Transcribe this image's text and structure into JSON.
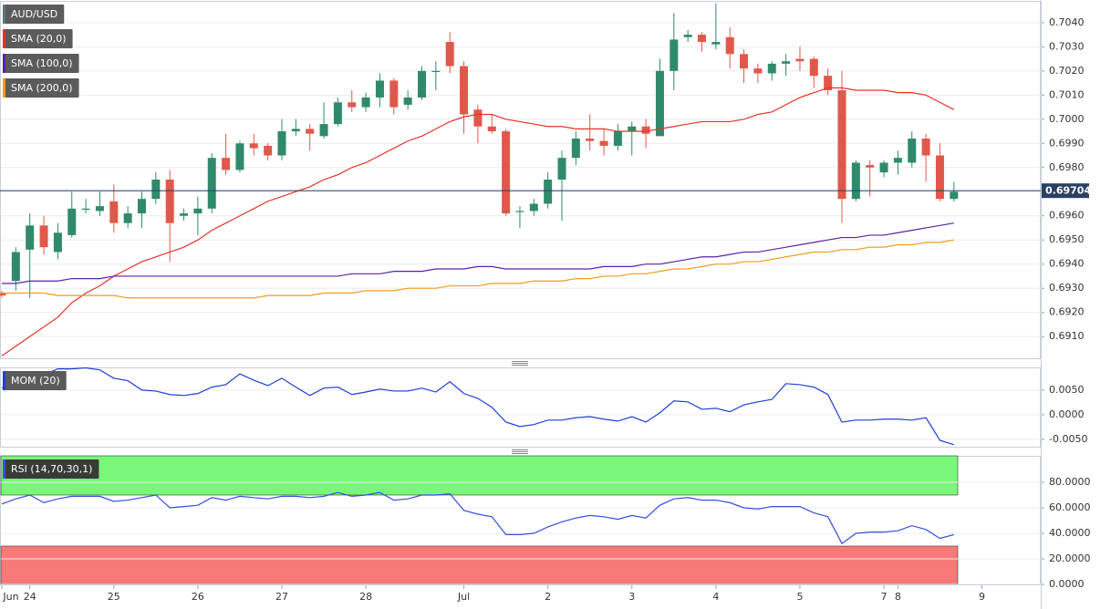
{
  "chart_data": [
    {
      "type": "candlestick",
      "name": "AUD/USD",
      "categories": [
        "Jun",
        null,
        "24",
        null,
        null,
        null,
        null,
        null,
        "25",
        null,
        null,
        null,
        null,
        null,
        "26",
        null,
        null,
        null,
        null,
        null,
        "27",
        null,
        null,
        null,
        null,
        null,
        "28",
        null,
        null,
        null,
        null,
        null,
        null,
        "Jul",
        null,
        null,
        null,
        null,
        null,
        "2",
        null,
        null,
        null,
        null,
        null,
        "3",
        null,
        null,
        null,
        null,
        null,
        "4",
        null,
        null,
        null,
        null,
        null,
        "5",
        null,
        null,
        null,
        null,
        null,
        "7",
        "8",
        null,
        null,
        null,
        null,
        null,
        "9"
      ],
      "open": [
        0.6928,
        0.6933,
        0.6946,
        0.6956,
        0.6945,
        0.6952,
        0.6963,
        0.6962,
        0.6966,
        0.6957,
        0.6961,
        0.6967,
        0.6975,
        0.696,
        0.6961,
        0.6963,
        0.6984,
        0.6979,
        0.699,
        0.6989,
        0.6985,
        0.6995,
        0.6996,
        0.6993,
        0.6998,
        0.7007,
        0.7005,
        0.7009,
        0.7016,
        0.7006,
        0.7009,
        0.702,
        0.7032,
        0.7022,
        0.7004,
        0.6997,
        0.6995,
        0.6962,
        0.6962,
        0.6965,
        0.6975,
        0.6984,
        0.6992,
        0.6991,
        0.6989,
        0.6995,
        0.6997,
        0.6993,
        0.702,
        0.7034,
        0.7035,
        0.7031,
        0.7034,
        0.7027,
        0.7021,
        0.7019,
        0.7023,
        0.7025,
        0.7025,
        0.7018,
        0.7012,
        0.6967,
        0.6981,
        0.6978,
        0.6982,
        0.6982,
        0.6992,
        0.6985,
        0.6967,
        null,
        null
      ],
      "high": [
        0.6929,
        0.6947,
        0.6961,
        0.696,
        0.6957,
        0.697,
        0.6967,
        0.697,
        0.6973,
        0.6964,
        0.697,
        0.6978,
        0.6979,
        0.6963,
        0.6968,
        0.6986,
        0.6994,
        0.6991,
        0.6994,
        0.699,
        0.7,
        0.7,
        0.6998,
        0.7007,
        0.7009,
        0.7012,
        0.7011,
        0.7019,
        0.7017,
        0.7012,
        0.7022,
        0.7024,
        0.7036,
        0.7024,
        0.7006,
        0.7002,
        0.6996,
        0.6964,
        0.6967,
        0.6978,
        0.6987,
        0.6995,
        0.7002,
        0.6996,
        0.6998,
        0.6999,
        0.7,
        0.7025,
        0.7044,
        0.7037,
        0.7036,
        0.7048,
        0.7038,
        0.7029,
        0.7023,
        0.7024,
        0.7027,
        0.703,
        0.7026,
        0.7021,
        0.702,
        0.6983,
        0.6983,
        0.6983,
        0.6987,
        0.6995,
        0.6994,
        0.699,
        0.6974,
        null,
        null
      ],
      "low": [
        0.6926,
        0.6929,
        0.6926,
        0.6944,
        0.6942,
        0.6951,
        0.6961,
        0.696,
        0.6953,
        0.6955,
        0.6955,
        0.6965,
        0.6941,
        0.6958,
        0.6952,
        0.6961,
        0.6977,
        0.6978,
        0.6985,
        0.6983,
        0.6983,
        0.6993,
        0.6987,
        0.6992,
        0.6997,
        0.7003,
        0.7003,
        0.7005,
        0.7002,
        0.7004,
        0.7008,
        0.7012,
        0.7019,
        0.6994,
        0.699,
        0.6994,
        0.696,
        0.6955,
        0.696,
        0.6963,
        0.6958,
        0.6981,
        0.6987,
        0.6985,
        0.6987,
        0.6985,
        0.6988,
        0.6993,
        0.7012,
        0.7032,
        0.7028,
        0.7029,
        0.7021,
        0.7015,
        0.7015,
        0.7016,
        0.7018,
        0.702,
        0.7013,
        0.701,
        0.6957,
        0.6966,
        0.6968,
        0.6976,
        0.6977,
        0.698,
        0.6974,
        0.6966,
        0.6966,
        null,
        null
      ],
      "close": [
        0.6927,
        0.6945,
        0.6956,
        0.6947,
        0.6953,
        0.6963,
        0.6963,
        0.6964,
        0.6957,
        0.6961,
        0.6967,
        0.6975,
        0.6957,
        0.6961,
        0.6963,
        0.6984,
        0.6979,
        0.699,
        0.6988,
        0.6985,
        0.6995,
        0.6996,
        0.6994,
        0.6998,
        0.7007,
        0.7005,
        0.7009,
        0.7016,
        0.7005,
        0.7009,
        0.702,
        0.702,
        0.7022,
        0.7002,
        0.6997,
        0.6995,
        0.6961,
        0.6962,
        0.6965,
        0.6975,
        0.6984,
        0.6992,
        0.6991,
        0.6989,
        0.6995,
        0.6997,
        0.6994,
        0.702,
        0.7033,
        0.7035,
        0.7032,
        0.7032,
        0.7027,
        0.7021,
        0.7019,
        0.7023,
        0.7024,
        0.7024,
        0.7018,
        0.7012,
        0.6967,
        0.6982,
        0.698,
        0.6982,
        0.6984,
        0.6992,
        0.6985,
        0.6967,
        0.697,
        null,
        null
      ],
      "up_color": "#2f8a6c",
      "down_color": "#e0584b",
      "series": [
        {
          "name": "SMA (20,0)",
          "color": "#e3342a",
          "values": [
            0.6902,
            0.6906,
            0.691,
            0.6914,
            0.6918,
            0.6924,
            0.6928,
            0.6931,
            0.6935,
            0.6938,
            0.6941,
            0.6943,
            0.6945,
            0.6947,
            0.695,
            0.6954,
            0.6957,
            0.696,
            0.6963,
            0.6966,
            0.6968,
            0.697,
            0.6972,
            0.6975,
            0.6977,
            0.698,
            0.6982,
            0.6985,
            0.6988,
            0.6991,
            0.6993,
            0.6996,
            0.6999,
            0.7001,
            0.7002,
            0.7002,
            0.7,
            0.6999,
            0.6998,
            0.6997,
            0.6997,
            0.6996,
            0.6996,
            0.6996,
            0.6995,
            0.6995,
            0.6995,
            0.6996,
            0.6997,
            0.6998,
            0.6999,
            0.6999,
            0.6999,
            0.7,
            0.7002,
            0.7003,
            0.7006,
            0.7009,
            0.7011,
            0.7013,
            0.7013,
            0.7012,
            0.7012,
            0.7012,
            0.7011,
            0.7011,
            0.701,
            0.7007,
            0.7004,
            null,
            null
          ]
        },
        {
          "name": "SMA (100,0)",
          "color": "#5a22a8",
          "values": [
            0.6932,
            0.6932,
            0.6933,
            0.6933,
            0.6933,
            0.6934,
            0.6934,
            0.6934,
            0.6935,
            0.6935,
            0.6935,
            0.6935,
            0.6935,
            0.6935,
            0.6935,
            0.6935,
            0.6935,
            0.6935,
            0.6935,
            0.6935,
            0.6935,
            0.6935,
            0.6935,
            0.6935,
            0.6935,
            0.6936,
            0.6936,
            0.6936,
            0.6937,
            0.6937,
            0.6937,
            0.6938,
            0.6938,
            0.6938,
            0.6939,
            0.6939,
            0.6938,
            0.6938,
            0.6938,
            0.6938,
            0.6938,
            0.6938,
            0.6938,
            0.6939,
            0.6939,
            0.6939,
            0.694,
            0.694,
            0.6941,
            0.6942,
            0.6943,
            0.6943,
            0.6944,
            0.6945,
            0.6945,
            0.6946,
            0.6947,
            0.6948,
            0.6949,
            0.695,
            0.6951,
            0.6951,
            0.6952,
            0.6952,
            0.6953,
            0.6954,
            0.6955,
            0.6956,
            0.6957,
            null,
            null
          ]
        },
        {
          "name": "SMA (200,0)",
          "color": "#f39a1e",
          "values": [
            0.6928,
            0.6928,
            0.6928,
            0.6928,
            0.6927,
            0.6927,
            0.6927,
            0.6927,
            0.6927,
            0.6926,
            0.6926,
            0.6926,
            0.6926,
            0.6926,
            0.6926,
            0.6926,
            0.6926,
            0.6926,
            0.6926,
            0.6927,
            0.6927,
            0.6927,
            0.6927,
            0.6928,
            0.6928,
            0.6928,
            0.6929,
            0.6929,
            0.6929,
            0.693,
            0.693,
            0.693,
            0.6931,
            0.6931,
            0.6931,
            0.6932,
            0.6932,
            0.6932,
            0.6933,
            0.6933,
            0.6933,
            0.6934,
            0.6934,
            0.6935,
            0.6935,
            0.6936,
            0.6936,
            0.6937,
            0.6938,
            0.6938,
            0.6939,
            0.694,
            0.694,
            0.6941,
            0.6941,
            0.6942,
            0.6943,
            0.6944,
            0.6945,
            0.6945,
            0.6946,
            0.6946,
            0.6947,
            0.6947,
            0.6948,
            0.6948,
            0.6949,
            0.6949,
            0.695,
            null,
            null
          ]
        }
      ],
      "ylim": [
        0.6901,
        0.7049
      ],
      "yticks": [
        {
          "value": 0.691,
          "label": "0.6910"
        },
        {
          "value": 0.692,
          "label": "0.6920"
        },
        {
          "value": 0.693,
          "label": "0.6930"
        },
        {
          "value": 0.694,
          "label": "0.6940"
        },
        {
          "value": 0.695,
          "label": "0.6950"
        },
        {
          "value": 0.696,
          "label": "0.6960"
        },
        {
          "value": 0.697,
          "label": "0.6970"
        },
        {
          "value": 0.698,
          "label": "0.6980"
        },
        {
          "value": 0.699,
          "label": "0.6990"
        },
        {
          "value": 0.7,
          "label": "0.7000"
        },
        {
          "value": 0.701,
          "label": "0.7010"
        },
        {
          "value": 0.702,
          "label": "0.7020"
        },
        {
          "value": 0.703,
          "label": "0.7030"
        },
        {
          "value": 0.704,
          "label": "0.7040"
        }
      ],
      "last_price": 0.69704,
      "last_price_color": "#2b4163",
      "grid": true
    },
    {
      "type": "line",
      "series": [
        {
          "name": "MOM (20)",
          "color": "#1f3fd6",
          "values": [
            0.0054,
            0.0069,
            0.008,
            0.0081,
            0.0093,
            0.0093,
            0.0095,
            0.0091,
            0.0074,
            0.0069,
            0.005,
            0.0048,
            0.0041,
            0.0039,
            0.0043,
            0.0056,
            0.0061,
            0.0083,
            0.007,
            0.0059,
            0.0074,
            0.0056,
            0.0039,
            0.0054,
            0.0056,
            0.0041,
            0.0046,
            0.0052,
            0.0048,
            0.0048,
            0.0054,
            0.0046,
            0.0067,
            0.0043,
            0.0033,
            0.0015,
            -0.0015,
            -0.0024,
            -0.002,
            -0.0011,
            -0.0011,
            -0.0006,
            -0.0004,
            -0.0009,
            -0.0013,
            -0.0004,
            -0.0015,
            0.0004,
            0.0028,
            0.0026,
            0.0011,
            0.0013,
            0.0006,
            0.002,
            0.0026,
            0.0031,
            0.0063,
            0.0061,
            0.0056,
            0.0041,
            -0.0015,
            -0.0011,
            -0.0011,
            -0.0009,
            -0.0009,
            -0.0011,
            -0.0006,
            -0.0052,
            -0.0061,
            null,
            null
          ]
        }
      ],
      "ylim": [
        -0.0065,
        0.0096
      ],
      "yticks": [
        {
          "value": -0.005,
          "label": "-0.0050"
        },
        {
          "value": 0,
          "label": "0.0000"
        },
        {
          "value": 0.005,
          "label": "0.0050"
        }
      ],
      "grid": true
    },
    {
      "type": "line",
      "series": [
        {
          "name": "RSI (14,70,30,1)",
          "color": "#3550e0",
          "values": [
            63,
            67,
            70,
            64,
            67,
            69,
            69,
            69,
            65,
            66,
            68,
            70,
            60,
            61,
            62,
            68,
            66,
            69,
            68,
            67,
            69,
            69,
            68,
            69,
            72,
            69,
            70,
            72,
            66,
            67,
            70,
            70,
            71,
            58,
            55,
            53,
            39,
            39,
            40,
            45,
            49,
            52,
            54,
            53,
            51,
            54,
            52,
            62,
            67,
            68,
            66,
            66,
            64,
            60,
            59,
            61,
            61,
            61,
            56,
            53,
            32,
            40,
            41,
            41,
            42,
            46,
            43,
            36,
            39,
            null,
            null
          ]
        }
      ],
      "overbought": 70,
      "overbought_color": "#7af77a",
      "oversold": 30,
      "oversold_color": "#f77a78",
      "ylim": [
        0,
        100.7
      ],
      "yticks": [
        {
          "value": 0,
          "label": "0.0000"
        },
        {
          "value": 20,
          "label": "20.0000"
        },
        {
          "value": 40,
          "label": "40.0000"
        },
        {
          "value": 60,
          "label": "60.0000"
        },
        {
          "value": 80,
          "label": "80.0000"
        }
      ],
      "grid": true
    }
  ]
}
